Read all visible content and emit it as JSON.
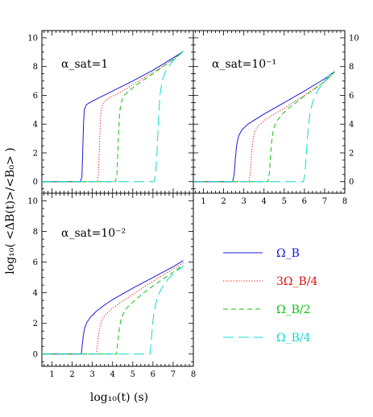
{
  "figure": {
    "ylabel": "log₁₀( <ΔB(t)>/<B₀> )",
    "xlabel": "log₁₀(t)  (s)"
  },
  "legend": [
    {
      "label": "Ω_B",
      "color": "#1a1adc",
      "dash": "solid"
    },
    {
      "label": "3Ω_B/4",
      "color": "#e01010",
      "dash": "dotted"
    },
    {
      "label": "Ω_B/2",
      "color": "#10c010",
      "dash": "short-dash"
    },
    {
      "label": "Ω_B/4",
      "color": "#10d8d8",
      "dash": "long-dash"
    }
  ],
  "chart_data": [
    {
      "type": "line",
      "panel_label": "α_sat=1",
      "xlim": [
        0.5,
        8
      ],
      "ylim": [
        -0.8,
        10.5
      ],
      "xticks": [],
      "yticks": [
        0,
        2,
        4,
        6,
        8,
        10
      ],
      "ytick_side": "left",
      "series": [
        {
          "name": "Ω_B",
          "color": "#1a1adc",
          "dash": "solid",
          "x": [
            0.5,
            2.4,
            2.48,
            2.52,
            2.56,
            2.6,
            2.7,
            3.0,
            3.5,
            4.0,
            5.0,
            6.0,
            7.0,
            7.5
          ],
          "y": [
            0,
            0,
            0.3,
            2.0,
            4.0,
            5.0,
            5.35,
            5.6,
            5.95,
            6.3,
            7.0,
            7.75,
            8.6,
            9.05
          ]
        },
        {
          "name": "3Ω_B/4",
          "color": "#e01010",
          "dash": "dotted",
          "x": [
            0.5,
            3.25,
            3.3,
            3.35,
            3.4,
            3.45,
            3.55,
            3.8,
            4.5,
            5.0,
            6.0,
            7.0,
            7.5
          ],
          "y": [
            0,
            0,
            0.5,
            2.5,
            4.3,
            5.1,
            5.5,
            5.8,
            6.3,
            6.75,
            7.6,
            8.5,
            9.05
          ]
        },
        {
          "name": "Ω_B/2",
          "color": "#10c010",
          "dash": "short-dash",
          "x": [
            0.5,
            4.15,
            4.22,
            4.28,
            4.34,
            4.4,
            4.55,
            4.8,
            5.2,
            6.0,
            7.0,
            7.5
          ],
          "y": [
            0,
            0,
            0.6,
            2.8,
            4.6,
            5.4,
            5.95,
            6.3,
            6.75,
            7.5,
            8.5,
            9.05
          ]
        },
        {
          "name": "Ω_B/4",
          "color": "#10d8d8",
          "dash": "long-dash",
          "x": [
            0.5,
            6.05,
            6.12,
            6.2,
            6.28,
            6.35,
            6.45,
            6.6,
            6.8,
            7.0,
            7.3,
            7.5
          ],
          "y": [
            0,
            0,
            0.4,
            2.0,
            4.5,
            6.0,
            7.0,
            7.6,
            8.05,
            8.4,
            8.8,
            9.05
          ]
        }
      ]
    },
    {
      "type": "line",
      "panel_label": "α_sat=10⁻¹",
      "xlim": [
        0.5,
        8
      ],
      "ylim": [
        -0.8,
        10.5
      ],
      "xticks": [
        1,
        2,
        3,
        4,
        5,
        6,
        7,
        8
      ],
      "yticks": [
        0,
        2,
        4,
        6,
        8,
        10
      ],
      "ytick_side": "right",
      "series": [
        {
          "name": "Ω_B",
          "color": "#1a1adc",
          "dash": "solid",
          "x": [
            0.5,
            2.45,
            2.52,
            2.58,
            2.65,
            2.75,
            2.9,
            3.2,
            3.6,
            4.0,
            5.0,
            6.0,
            7.0,
            7.5
          ],
          "y": [
            0,
            0,
            0.5,
            1.6,
            2.6,
            3.2,
            3.6,
            4.0,
            4.35,
            4.7,
            5.5,
            6.3,
            7.15,
            7.65
          ]
        },
        {
          "name": "3Ω_B/4",
          "color": "#e01010",
          "dash": "dotted",
          "x": [
            0.5,
            3.25,
            3.32,
            3.38,
            3.45,
            3.55,
            3.7,
            4.0,
            4.5,
            5.0,
            6.0,
            7.0,
            7.5
          ],
          "y": [
            0,
            0,
            0.6,
            1.8,
            2.9,
            3.5,
            3.85,
            4.25,
            4.7,
            5.1,
            6.0,
            6.95,
            7.6
          ]
        },
        {
          "name": "Ω_B/2",
          "color": "#10c010",
          "dash": "short-dash",
          "x": [
            0.5,
            4.2,
            4.27,
            4.33,
            4.4,
            4.5,
            4.65,
            4.9,
            5.3,
            6.0,
            7.0,
            7.5
          ],
          "y": [
            0,
            0,
            0.7,
            2.0,
            3.1,
            3.8,
            4.25,
            4.7,
            5.2,
            5.95,
            6.95,
            7.65
          ]
        },
        {
          "name": "Ω_B/4",
          "color": "#10d8d8",
          "dash": "long-dash",
          "x": [
            0.5,
            5.95,
            6.02,
            6.1,
            6.18,
            6.28,
            6.4,
            6.6,
            6.9,
            7.2,
            7.5
          ],
          "y": [
            0,
            0,
            0.5,
            2.0,
            3.6,
            4.8,
            5.5,
            6.2,
            6.85,
            7.35,
            7.75
          ]
        }
      ]
    },
    {
      "type": "line",
      "panel_label": "α_sat=10⁻²",
      "xlim": [
        0.5,
        8
      ],
      "ylim": [
        -0.8,
        10.5
      ],
      "xticks": [
        1,
        2,
        3,
        4,
        5,
        6,
        7,
        8
      ],
      "yticks": [
        0,
        2,
        4,
        6,
        8,
        10
      ],
      "ytick_side": "left",
      "series": [
        {
          "name": "Ω_B",
          "color": "#1a1adc",
          "dash": "solid",
          "x": [
            0.5,
            2.45,
            2.5,
            2.55,
            2.62,
            2.72,
            2.9,
            3.2,
            3.6,
            4.0,
            5.0,
            6.0,
            7.0,
            7.5
          ],
          "y": [
            0,
            0,
            0.6,
            1.2,
            1.7,
            2.05,
            2.4,
            2.8,
            3.2,
            3.55,
            4.3,
            5.0,
            5.7,
            6.1
          ]
        },
        {
          "name": "3Ω_B/4",
          "color": "#e01010",
          "dash": "dotted",
          "x": [
            0.5,
            3.2,
            3.26,
            3.32,
            3.4,
            3.5,
            3.7,
            4.0,
            4.5,
            5.0,
            6.0,
            7.0,
            7.5
          ],
          "y": [
            0,
            0,
            0.7,
            1.4,
            1.95,
            2.3,
            2.65,
            3.0,
            3.45,
            3.9,
            4.75,
            5.55,
            5.95
          ]
        },
        {
          "name": "Ω_B/2",
          "color": "#10c010",
          "dash": "short-dash",
          "x": [
            0.5,
            4.2,
            4.26,
            4.33,
            4.41,
            4.52,
            4.7,
            5.0,
            5.5,
            6.0,
            7.0,
            7.5
          ],
          "y": [
            0,
            0,
            0.8,
            1.6,
            2.2,
            2.6,
            3.0,
            3.4,
            3.95,
            4.45,
            5.35,
            5.8
          ]
        },
        {
          "name": "Ω_B/4",
          "color": "#10d8d8",
          "dash": "long-dash",
          "x": [
            0.5,
            5.85,
            5.9,
            5.96,
            6.03,
            6.12,
            6.25,
            6.45,
            6.75,
            7.1,
            7.5
          ],
          "y": [
            0,
            0,
            0.6,
            1.6,
            2.5,
            3.2,
            3.8,
            4.35,
            4.9,
            5.35,
            5.75
          ]
        }
      ]
    }
  ]
}
